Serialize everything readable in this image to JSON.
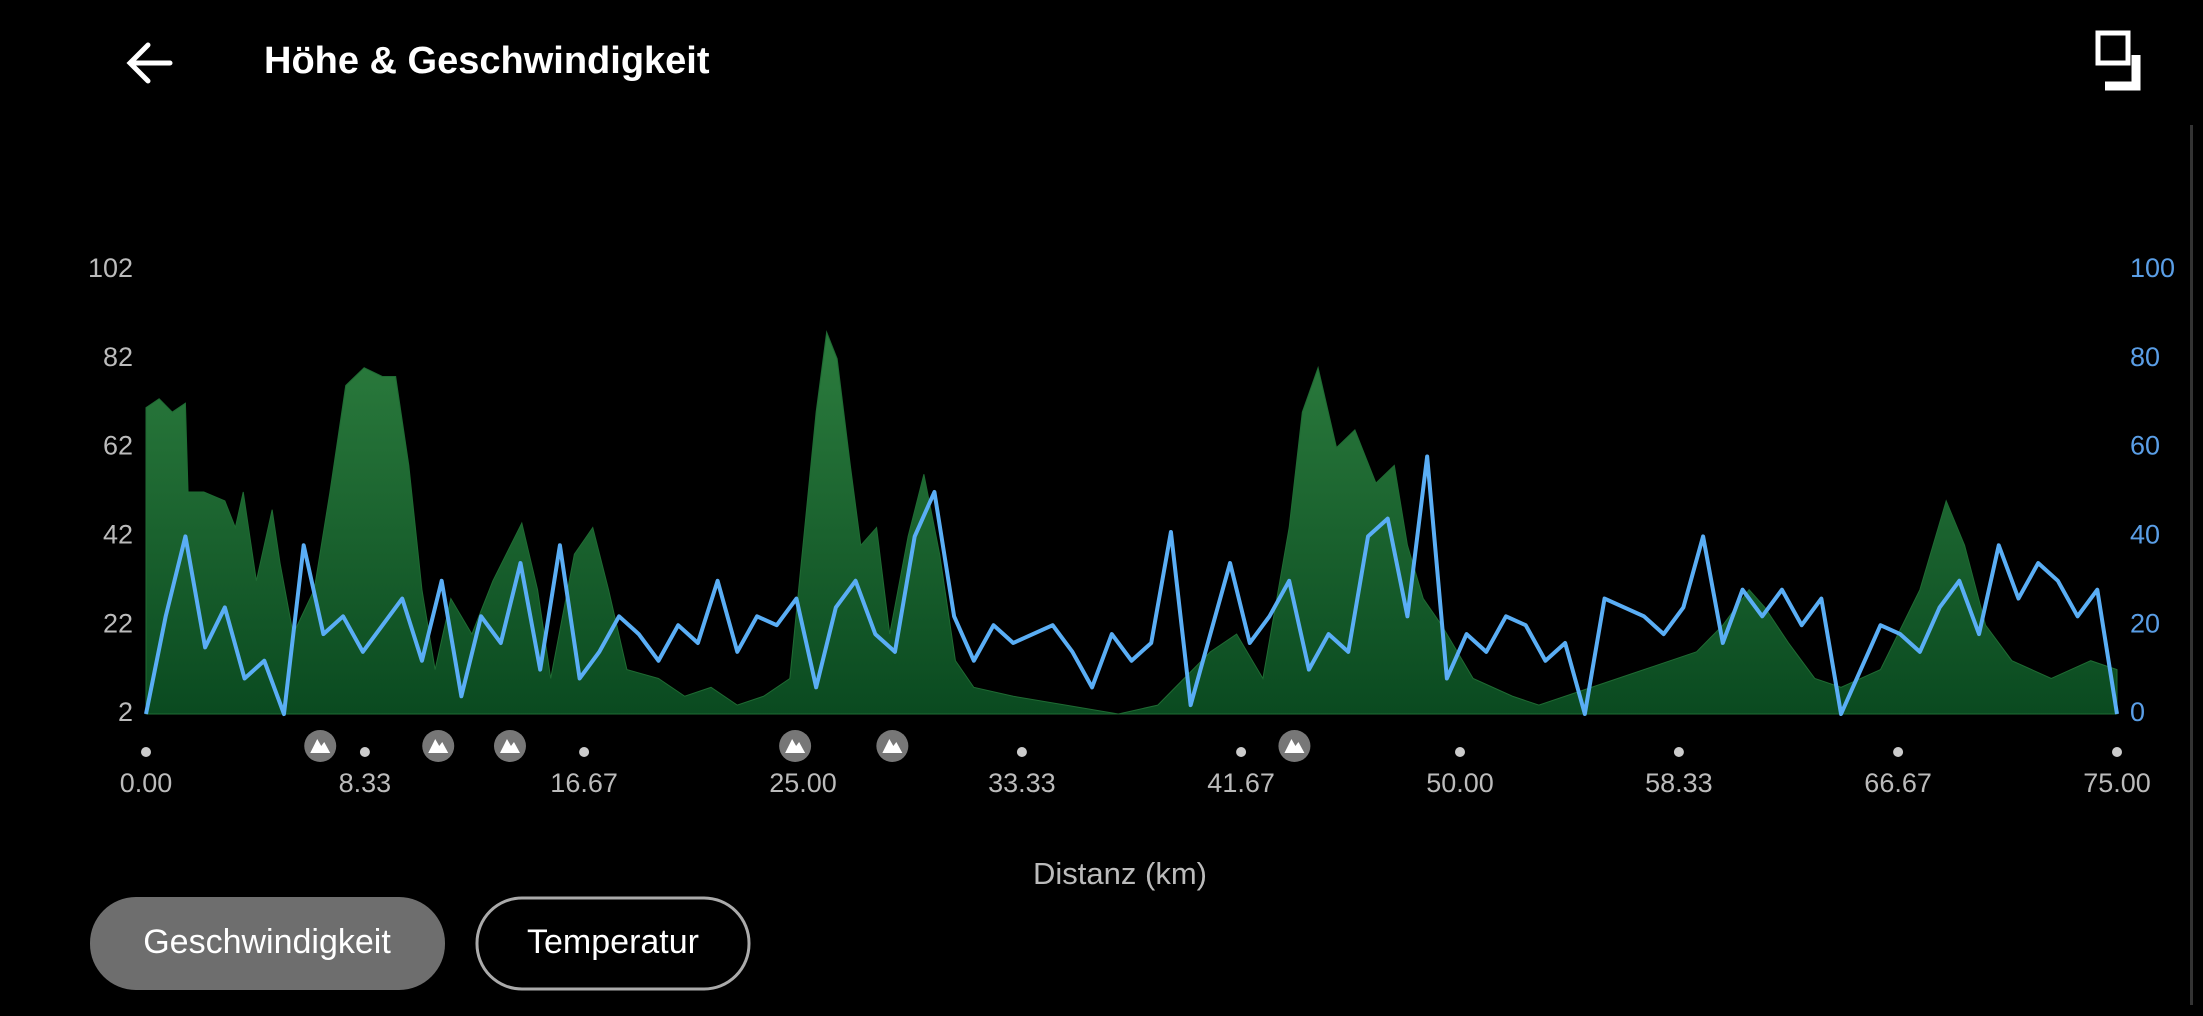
{
  "header": {
    "title": "Höhe & Geschwindigkeit"
  },
  "buttons": [
    "Geschwindigkeit",
    "Temperatur"
  ],
  "chart_data": {
    "type": "area-line",
    "xlabel": "Distanz (km)",
    "xlim": [
      0,
      75
    ],
    "xticks": [
      {
        "value": 0,
        "label": "0.00"
      },
      8.33,
      16.67,
      {
        "value": 25,
        "label": "25.00"
      },
      33.33,
      41.67,
      {
        "value": 50,
        "label": "50.00"
      },
      58.33,
      66.67,
      {
        "value": 75,
        "label": "75.00"
      }
    ],
    "ylim": [
      2,
      102
    ],
    "yticks": [
      2,
      22,
      42,
      62,
      82,
      102
    ],
    "y2lim": [
      0,
      100
    ],
    "y2ticks": [
      0,
      20,
      40,
      60,
      80,
      100
    ],
    "markers": [
      6.63,
      11.12,
      13.85,
      24.7,
      28.4,
      43.7
    ],
    "series": [
      {
        "color": "#1f6b33",
        "axis": "y",
        "x": [
          0,
          0.5,
          1,
          1.5,
          1.6,
          2.2,
          3,
          3.4,
          3.7,
          4.2,
          4.8,
          5.1,
          5.6,
          6.4,
          7,
          7.6,
          8.3,
          9,
          9.5,
          10,
          10.5,
          11,
          11.6,
          12.4,
          13.2,
          14.3,
          14.9,
          15.4,
          16.3,
          17,
          17.6,
          18.3,
          19.5,
          20.5,
          21.5,
          22.5,
          23.5,
          24.5,
          25,
          25.5,
          25.9,
          26.3,
          26.8,
          27.2,
          27.8,
          28.3,
          29,
          29.6,
          30.2,
          30.8,
          31.5,
          33,
          35,
          37,
          38.5,
          39.5,
          40.5,
          41.5,
          42.5,
          43.5,
          44,
          44.6,
          45.3,
          46,
          46.8,
          47.5,
          48,
          48.6,
          49.3,
          50.5,
          52,
          53,
          55,
          57,
          59,
          60,
          61,
          61.6,
          62.5,
          63.5,
          64.5,
          66,
          67.5,
          68.5,
          69.2,
          70,
          71,
          72.5,
          74,
          75
        ],
        "values": [
          71,
          73,
          70,
          72,
          52,
          52,
          50,
          44,
          52,
          32,
          48,
          36,
          20,
          30,
          52,
          76,
          80,
          78,
          78,
          58,
          30,
          12,
          28,
          20,
          32,
          45,
          30,
          10,
          38,
          44,
          30,
          12,
          10,
          6,
          8,
          4,
          6,
          10,
          40,
          70,
          88,
          82,
          58,
          40,
          44,
          20,
          42,
          56,
          38,
          14,
          8,
          6,
          4,
          2,
          4,
          10,
          16,
          20,
          10,
          44,
          70,
          80,
          62,
          66,
          54,
          58,
          40,
          28,
          22,
          10,
          6,
          4,
          8,
          12,
          16,
          22,
          30,
          26,
          18,
          10,
          8,
          12,
          30,
          50,
          40,
          22,
          14,
          10,
          14,
          12
        ]
      },
      {
        "color": "#5aaef5",
        "axis": "y2",
        "x": [
          0,
          0.75,
          1.5,
          2.25,
          3,
          3.75,
          4.5,
          5.25,
          6,
          6.75,
          7.5,
          8.25,
          9,
          9.75,
          10.5,
          11.25,
          12,
          12.75,
          13.5,
          14.25,
          15,
          15.75,
          16.5,
          17.25,
          18,
          18.75,
          19.5,
          20.25,
          21,
          21.75,
          22.5,
          23.25,
          24,
          24.75,
          25.5,
          26.25,
          27,
          27.75,
          28.5,
          29.25,
          30,
          30.75,
          31.5,
          32.25,
          33,
          33.75,
          34.5,
          35.25,
          36,
          36.75,
          37.5,
          38.25,
          39,
          39.75,
          40.5,
          41.25,
          42,
          42.75,
          43.5,
          44.25,
          45,
          45.75,
          46.5,
          47.25,
          48,
          48.75,
          49.5,
          50.25,
          51,
          51.75,
          52.5,
          53.25,
          54,
          54.75,
          55.5,
          56.25,
          57,
          57.75,
          58.5,
          59.25,
          60,
          60.75,
          61.5,
          62.25,
          63,
          63.75,
          64.5,
          65.25,
          66,
          66.75,
          67.5,
          68.25,
          69,
          69.75,
          70.5,
          71.25,
          72,
          72.75,
          73.5,
          74.25,
          75
        ],
        "values": [
          0,
          22,
          40,
          15,
          24,
          8,
          12,
          0,
          38,
          18,
          22,
          14,
          20,
          26,
          12,
          30,
          4,
          22,
          16,
          34,
          10,
          38,
          8,
          14,
          22,
          18,
          12,
          20,
          16,
          30,
          14,
          22,
          20,
          26,
          6,
          24,
          30,
          18,
          14,
          40,
          50,
          22,
          12,
          20,
          16,
          18,
          20,
          14,
          6,
          18,
          12,
          16,
          41,
          2,
          18,
          34,
          16,
          22,
          30,
          10,
          18,
          14,
          40,
          44,
          22,
          58,
          8,
          18,
          14,
          22,
          20,
          12,
          16,
          0,
          26,
          24,
          22,
          18,
          24,
          40,
          16,
          28,
          22,
          28,
          20,
          26,
          0,
          10,
          20,
          18,
          14,
          24,
          30,
          18,
          38,
          26,
          34,
          30,
          22,
          28,
          0
        ]
      }
    ]
  }
}
